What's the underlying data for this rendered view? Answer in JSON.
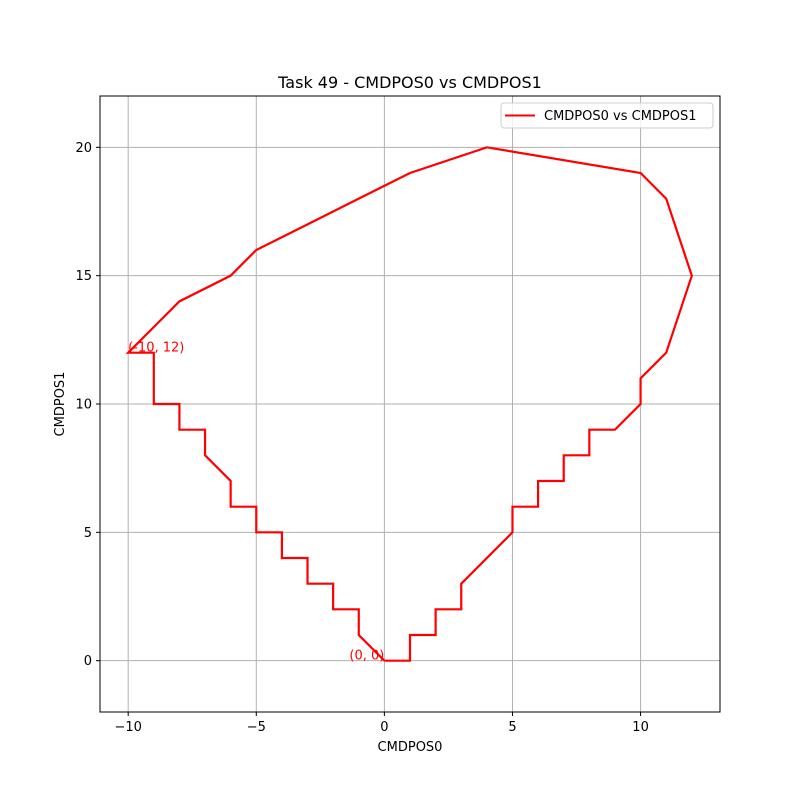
{
  "chart_data": {
    "type": "line",
    "title": "Task 49 - CMDPOS0 vs CMDPOS1",
    "xlabel": "CMDPOS0",
    "ylabel": "CMDPOS1",
    "xlim": [
      -11.1,
      13.1
    ],
    "ylim": [
      -2,
      22
    ],
    "xticks": [
      -10,
      -5,
      0,
      5,
      10
    ],
    "yticks": [
      0,
      5,
      10,
      15,
      20
    ],
    "xtick_labels": [
      "−10",
      "−5",
      "0",
      "5",
      "10"
    ],
    "ytick_labels": [
      "0",
      "5",
      "10",
      "15",
      "20"
    ],
    "grid": true,
    "legend_position": "top-right",
    "series": [
      {
        "name": "CMDPOS0 vs CMDPOS1",
        "color": "#ff0000",
        "x": [
          0,
          1,
          1,
          2,
          2,
          3,
          3,
          5,
          5,
          6,
          6,
          7,
          7,
          8,
          8,
          9,
          10,
          10,
          11,
          11,
          12,
          12,
          11,
          11,
          10,
          10,
          4,
          4,
          1,
          1,
          -1,
          -1,
          -3,
          -3,
          -5,
          -5,
          -6,
          -6,
          -8,
          -8,
          -9,
          -9,
          -10,
          -9,
          -9,
          -8,
          -8,
          -7,
          -7,
          -6,
          -6,
          -5,
          -5,
          -4,
          -4,
          -3,
          -3,
          -2,
          -2,
          -1,
          -1,
          0
        ],
        "y": [
          0,
          0,
          1,
          1,
          2,
          2,
          3,
          5,
          6,
          6,
          7,
          7,
          8,
          8,
          9,
          9,
          10,
          11,
          12,
          12,
          15,
          15,
          18,
          18,
          19,
          19,
          20,
          20,
          19,
          19,
          18,
          18,
          17,
          17,
          16,
          16,
          15,
          15,
          14,
          14,
          13,
          13,
          12,
          12,
          10,
          10,
          9,
          9,
          8,
          7,
          6,
          6,
          5,
          5,
          4,
          4,
          3,
          3,
          2,
          2,
          1,
          0
        ]
      }
    ],
    "annotations": [
      {
        "text": "(0, 0)",
        "x": 0,
        "y": 0,
        "color": "#ff0000"
      },
      {
        "text": "(-10, 12)",
        "x": -10,
        "y": 12,
        "color": "#ff0000"
      }
    ]
  }
}
